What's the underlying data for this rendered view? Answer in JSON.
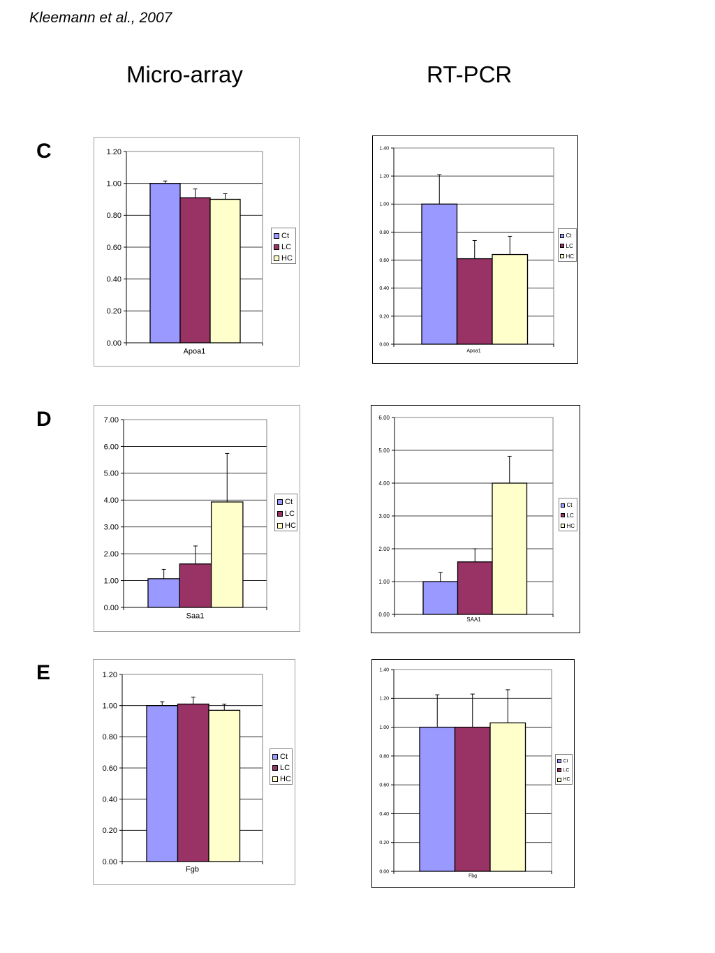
{
  "header": {
    "citation": "Kleemann et al., 2007",
    "left_column_title": "Micro-array",
    "right_column_title": "RT-PCR"
  },
  "panels": [
    {
      "label": "C"
    },
    {
      "label": "D"
    },
    {
      "label": "E"
    }
  ],
  "colors": {
    "Ct": "#9999ff",
    "LC": "#993366",
    "HC": "#ffffcc"
  },
  "chart_data": [
    {
      "type": "bar",
      "panel": "C",
      "method": "Micro-array",
      "categories": [
        "Apoa1"
      ],
      "series": [
        {
          "name": "Ct",
          "values": [
            1.0
          ],
          "error": [
            0.015
          ]
        },
        {
          "name": "LC",
          "values": [
            0.91
          ],
          "error": [
            0.055
          ]
        },
        {
          "name": "HC",
          "values": [
            0.9
          ],
          "error": [
            0.035
          ]
        }
      ],
      "xlabel": "Apoa1",
      "ylim": [
        0,
        1.2
      ],
      "yticks": [
        "0.00",
        "0.20",
        "0.40",
        "0.60",
        "0.80",
        "1.00",
        "1.20"
      ],
      "grid": true,
      "legend": "right"
    },
    {
      "type": "bar",
      "panel": "C",
      "method": "RT-PCR",
      "categories": [
        "Apoa1"
      ],
      "series": [
        {
          "name": "Ct",
          "values": [
            1.0
          ],
          "error": [
            0.21
          ]
        },
        {
          "name": "LC",
          "values": [
            0.61
          ],
          "error": [
            0.13
          ]
        },
        {
          "name": "HC",
          "values": [
            0.64
          ],
          "error": [
            0.13
          ]
        }
      ],
      "xlabel": "Apoa1",
      "ylim": [
        0,
        1.4
      ],
      "yticks": [
        "0.00",
        "0.20",
        "0.40",
        "0.60",
        "0.80",
        "1.00",
        "1.20",
        "1.40"
      ],
      "grid": true,
      "legend": "right"
    },
    {
      "type": "bar",
      "panel": "D",
      "method": "Micro-array",
      "categories": [
        "Saa1"
      ],
      "series": [
        {
          "name": "Ct",
          "values": [
            1.07
          ],
          "error": [
            0.35
          ]
        },
        {
          "name": "LC",
          "values": [
            1.62
          ],
          "error": [
            0.67
          ]
        },
        {
          "name": "HC",
          "values": [
            3.93
          ],
          "error": [
            1.81
          ]
        }
      ],
      "xlabel": "Saa1",
      "ylim": [
        0,
        7
      ],
      "yticks": [
        "0.00",
        "1.00",
        "2.00",
        "3.00",
        "4.00",
        "5.00",
        "6.00",
        "7.00"
      ],
      "grid": true,
      "legend": "right"
    },
    {
      "type": "bar",
      "panel": "D",
      "method": "RT-PCR",
      "categories": [
        "SAA1"
      ],
      "series": [
        {
          "name": "Ct",
          "values": [
            1.0
          ],
          "error": [
            0.28
          ]
        },
        {
          "name": "LC",
          "values": [
            1.6
          ],
          "error": [
            0.4
          ]
        },
        {
          "name": "HC",
          "values": [
            4.0
          ],
          "error": [
            0.82
          ]
        }
      ],
      "xlabel": "SAA1",
      "ylim": [
        0,
        6
      ],
      "yticks": [
        "0.00",
        "1.00",
        "2.00",
        "3.00",
        "4.00",
        "5.00",
        "6.00"
      ],
      "grid": true,
      "legend": "right"
    },
    {
      "type": "bar",
      "panel": "E",
      "method": "Micro-array",
      "categories": [
        "Fgb"
      ],
      "series": [
        {
          "name": "Ct",
          "values": [
            1.0
          ],
          "error": [
            0.025
          ]
        },
        {
          "name": "LC",
          "values": [
            1.01
          ],
          "error": [
            0.045
          ]
        },
        {
          "name": "HC",
          "values": [
            0.97
          ],
          "error": [
            0.04
          ]
        }
      ],
      "xlabel": "Fgb",
      "ylim": [
        0,
        1.2
      ],
      "yticks": [
        "0.00",
        "0.20",
        "0.40",
        "0.60",
        "0.80",
        "1.00",
        "1.20"
      ],
      "grid": true,
      "legend": "right"
    },
    {
      "type": "bar",
      "panel": "E",
      "method": "RT-PCR",
      "categories": [
        "Fbg"
      ],
      "series": [
        {
          "name": "Ct",
          "values": [
            1.0
          ],
          "error": [
            0.225
          ]
        },
        {
          "name": "LC",
          "values": [
            1.0
          ],
          "error": [
            0.23
          ]
        },
        {
          "name": "HC",
          "values": [
            1.03
          ],
          "error": [
            0.23
          ]
        }
      ],
      "xlabel": "Fbg",
      "ylim": [
        0,
        1.4
      ],
      "yticks": [
        "0.00",
        "0.20",
        "0.40",
        "0.60",
        "0.80",
        "1.00",
        "1.20",
        "1.40"
      ],
      "grid": true,
      "legend": "right"
    }
  ]
}
